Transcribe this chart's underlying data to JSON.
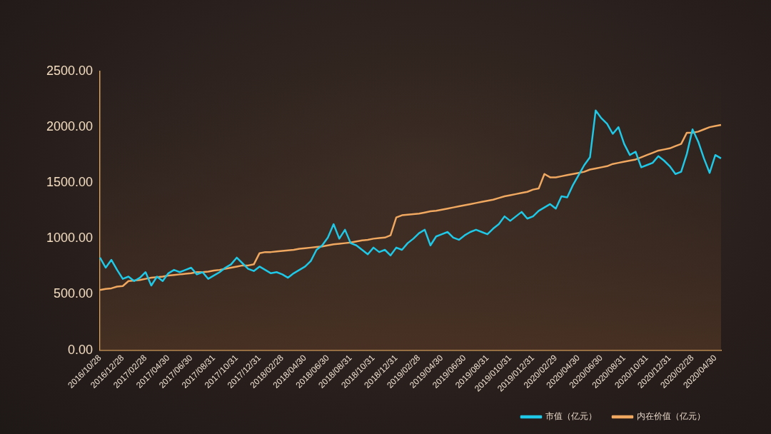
{
  "chart_data": {
    "type": "line",
    "categories": [
      "2016/10/28",
      null,
      null,
      null,
      "2016/12/28",
      null,
      null,
      null,
      "2017/02/28",
      null,
      null,
      null,
      "2017/04/30",
      null,
      null,
      null,
      "2017/06/30",
      null,
      null,
      null,
      "2017/08/31",
      null,
      null,
      null,
      "2017/10/31",
      null,
      null,
      null,
      "2017/12/31",
      null,
      null,
      null,
      "2018/02/28",
      null,
      null,
      null,
      "2018/04/30",
      null,
      null,
      null,
      "2018/06/30",
      null,
      null,
      null,
      "2018/08/31",
      null,
      null,
      null,
      "2018/10/31",
      null,
      null,
      null,
      "2018/12/31",
      null,
      null,
      null,
      "2019/02/28",
      null,
      null,
      null,
      "2019/04/30",
      null,
      null,
      null,
      "2019/06/30",
      null,
      null,
      null,
      "2019/08/31",
      null,
      null,
      null,
      "2019/010/31",
      null,
      null,
      null,
      "2019/012/31",
      null,
      null,
      null,
      "2020/02/29",
      null,
      null,
      null,
      "2020/04/30",
      null,
      null,
      null,
      "2020/06/30",
      null,
      null,
      null,
      "2020/08/31",
      null,
      null,
      null,
      "2020/10/31",
      null,
      null,
      null,
      "2020/12/31",
      null,
      null,
      null,
      "2020/02/28",
      null,
      null,
      null,
      "2020/04/30",
      null
    ],
    "series": [
      {
        "name": "市值（亿元）",
        "color": "#1ec8e6",
        "values": [
          830,
          740,
          810,
          720,
          640,
          660,
          620,
          650,
          700,
          580,
          660,
          620,
          690,
          720,
          700,
          720,
          740,
          680,
          700,
          640,
          670,
          700,
          740,
          770,
          830,
          780,
          730,
          710,
          750,
          720,
          690,
          700,
          680,
          650,
          690,
          720,
          750,
          800,
          900,
          940,
          1010,
          1130,
          1000,
          1080,
          960,
          940,
          900,
          860,
          920,
          880,
          900,
          850,
          920,
          900,
          960,
          1000,
          1050,
          1080,
          940,
          1020,
          1040,
          1060,
          1010,
          990,
          1030,
          1060,
          1080,
          1060,
          1040,
          1090,
          1130,
          1200,
          1160,
          1200,
          1240,
          1180,
          1200,
          1250,
          1280,
          1310,
          1270,
          1380,
          1370,
          1480,
          1570,
          1660,
          1730,
          2150,
          2080,
          2030,
          1940,
          2000,
          1850,
          1750,
          1780,
          1640,
          1660,
          1680,
          1740,
          1700,
          1650,
          1580,
          1600,
          1760,
          1980,
          1870,
          1720,
          1590,
          1750,
          1720
        ]
      },
      {
        "name": "内在价值（亿元）",
        "color": "#f0a860",
        "values": [
          540,
          550,
          555,
          570,
          575,
          620,
          625,
          630,
          640,
          650,
          655,
          660,
          670,
          675,
          680,
          685,
          690,
          700,
          700,
          705,
          715,
          720,
          730,
          740,
          750,
          760,
          760,
          770,
          870,
          880,
          880,
          885,
          890,
          895,
          900,
          910,
          915,
          920,
          925,
          930,
          940,
          950,
          955,
          960,
          965,
          975,
          985,
          990,
          1000,
          1005,
          1010,
          1030,
          1190,
          1210,
          1215,
          1220,
          1225,
          1235,
          1245,
          1250,
          1260,
          1270,
          1280,
          1290,
          1300,
          1310,
          1320,
          1330,
          1340,
          1350,
          1365,
          1380,
          1390,
          1400,
          1410,
          1420,
          1440,
          1450,
          1580,
          1550,
          1550,
          1560,
          1570,
          1580,
          1590,
          1600,
          1620,
          1630,
          1640,
          1650,
          1670,
          1680,
          1690,
          1700,
          1710,
          1730,
          1750,
          1770,
          1790,
          1800,
          1810,
          1830,
          1850,
          1950,
          1950,
          1960,
          1980,
          2000,
          2010,
          2020
        ]
      }
    ],
    "ylim": [
      0,
      2500
    ],
    "yticks": [
      {
        "value": 0,
        "label": "0.00"
      },
      {
        "value": 500,
        "label": "500.00"
      },
      {
        "value": 1000,
        "label": "1000.00"
      },
      {
        "value": 1500,
        "label": "1500.00"
      },
      {
        "value": 2000,
        "label": "2000.00"
      },
      {
        "value": 2500,
        "label": "2500.00"
      }
    ],
    "grid": false,
    "legend": "bottom right",
    "marker": "none",
    "line_style": "solid"
  }
}
